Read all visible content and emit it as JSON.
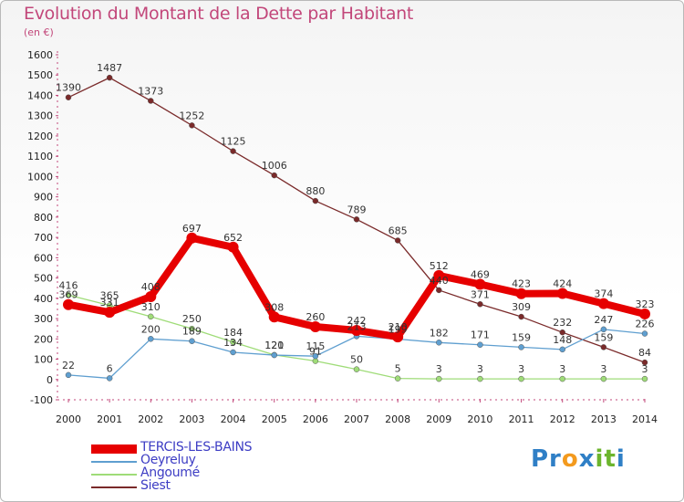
{
  "title": "Evolution du Montant de la Dette par Habitant",
  "unit": "(en €)",
  "logo": {
    "text": "Proxiti",
    "parts": [
      "Pr",
      "o",
      "x",
      "it",
      "i"
    ]
  },
  "chart_data": {
    "type": "line",
    "title": "Evolution du Montant de la Dette par Habitant",
    "ylabel": "(en €)",
    "xlabel": "",
    "ylim": [
      -100,
      1600
    ],
    "yticks": [
      -100,
      0,
      100,
      200,
      300,
      400,
      500,
      600,
      700,
      800,
      900,
      1000,
      1100,
      1200,
      1300,
      1400,
      1500,
      1600
    ],
    "x": [
      2000,
      2001,
      2002,
      2003,
      2004,
      2005,
      2006,
      2007,
      2008,
      2009,
      2010,
      2011,
      2012,
      2013,
      2014
    ],
    "grid": false,
    "legend_position": "bottom-left",
    "series": [
      {
        "name": "TERCIS-LES-BAINS",
        "color": "#e60000",
        "width": 8,
        "values": [
          369,
          331,
          408,
          697,
          652,
          308,
          260,
          242,
          210,
          512,
          469,
          423,
          424,
          374,
          323
        ]
      },
      {
        "name": "Oeyreluy",
        "color": "#5f9fd0",
        "width": 1.3,
        "values": [
          22,
          6,
          200,
          189,
          134,
          120,
          115,
          213,
          199,
          182,
          171,
          159,
          148,
          247,
          226
        ]
      },
      {
        "name": "Angoumé",
        "color": "#9fdc78",
        "width": 1.3,
        "values": [
          416,
          365,
          310,
          250,
          184,
          121,
          91,
          50,
          5,
          3,
          3,
          3,
          3,
          3,
          3
        ]
      },
      {
        "name": "Siest",
        "color": "#7a2a2a",
        "width": 1.3,
        "values": [
          1390,
          1487,
          1373,
          1252,
          1125,
          1006,
          880,
          789,
          685,
          440,
          371,
          309,
          232,
          159,
          84
        ]
      }
    ]
  }
}
